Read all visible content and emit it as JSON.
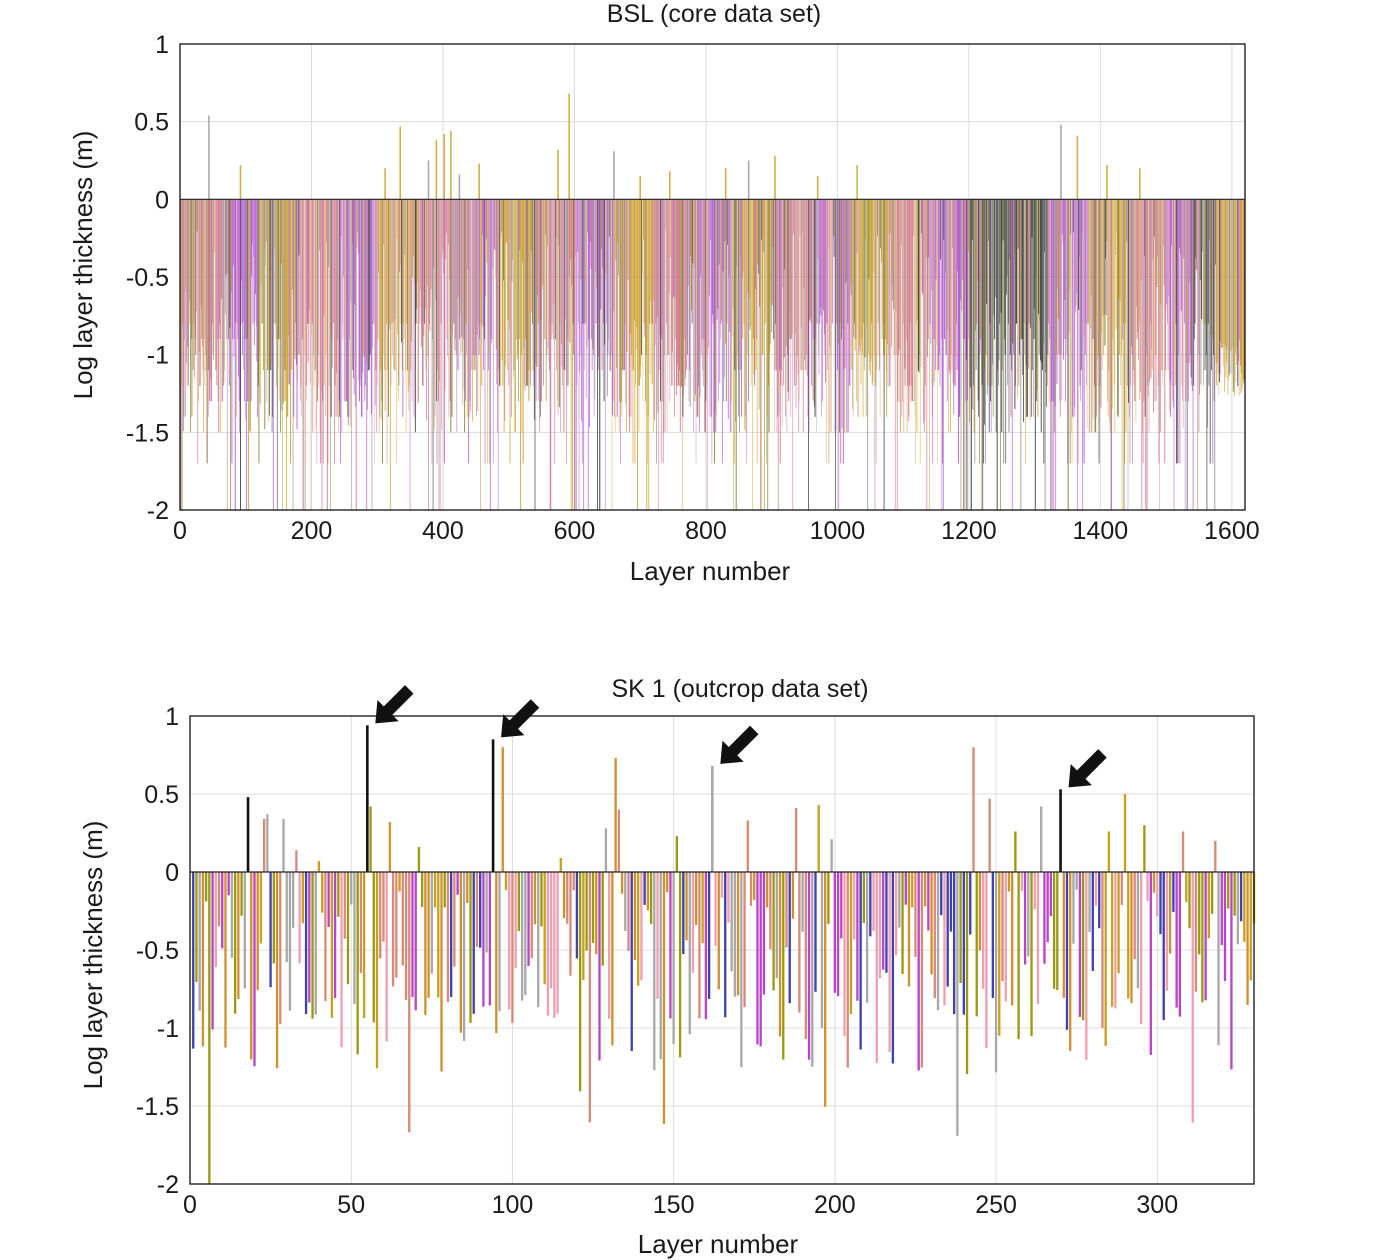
{
  "chart_data": [
    {
      "type": "bar",
      "title": "BSL (core data set)",
      "xlabel": "Layer number",
      "ylabel": "Log layer thickness (m)",
      "xlim": [
        0,
        1620
      ],
      "ylim": [
        -2,
        1
      ],
      "xticks": [
        0,
        200,
        400,
        600,
        800,
        1000,
        1200,
        1400,
        1600
      ],
      "xtick_labels": [
        "0",
        "200",
        "400",
        "600",
        "800",
        "1000",
        "1200",
        "1400",
        "1600"
      ],
      "yticks": [
        1,
        0.5,
        0,
        -0.5,
        -1,
        -1.5,
        -2
      ],
      "ytick_labels": [
        "1",
        "0.5",
        "0",
        "-0.5",
        "-1",
        "-1.5",
        "-2"
      ],
      "grid": true,
      "layer_count": 1620,
      "series_note": "dense bars, one per layer, coloured by facies",
      "palette": [
        "#c9a227",
        "#d07a8a",
        "#b45ad2",
        "#9c9c9c",
        "#404040",
        "#7a7a2a",
        "#e3b07a"
      ],
      "notable_positive_bars": [
        {
          "x": 44,
          "y": 0.54
        },
        {
          "x": 92,
          "y": 0.22
        },
        {
          "x": 312,
          "y": 0.2
        },
        {
          "x": 335,
          "y": 0.47
        },
        {
          "x": 378,
          "y": 0.25
        },
        {
          "x": 390,
          "y": 0.38
        },
        {
          "x": 402,
          "y": 0.42
        },
        {
          "x": 412,
          "y": 0.44
        },
        {
          "x": 425,
          "y": 0.16
        },
        {
          "x": 455,
          "y": 0.23
        },
        {
          "x": 575,
          "y": 0.32
        },
        {
          "x": 592,
          "y": 0.68
        },
        {
          "x": 660,
          "y": 0.31
        },
        {
          "x": 700,
          "y": 0.15
        },
        {
          "x": 745,
          "y": 0.18
        },
        {
          "x": 830,
          "y": 0.2
        },
        {
          "x": 865,
          "y": 0.25
        },
        {
          "x": 905,
          "y": 0.28
        },
        {
          "x": 970,
          "y": 0.15
        },
        {
          "x": 1030,
          "y": 0.22
        },
        {
          "x": 1340,
          "y": 0.48
        },
        {
          "x": 1365,
          "y": 0.41
        },
        {
          "x": 1410,
          "y": 0.22
        },
        {
          "x": 1460,
          "y": 0.2
        }
      ]
    },
    {
      "type": "bar",
      "title": "SK 1 (outcrop data set)",
      "xlabel": "Layer number",
      "ylabel": "Log layer thickness (m)",
      "xlim": [
        0,
        330
      ],
      "ylim": [
        -2,
        1
      ],
      "xticks": [
        0,
        50,
        100,
        150,
        200,
        250,
        300
      ],
      "xtick_labels": [
        "0",
        "50",
        "100",
        "150",
        "200",
        "250",
        "300"
      ],
      "yticks": [
        1,
        0.5,
        0,
        -0.5,
        -1,
        -1.5,
        -2
      ],
      "ytick_labels": [
        "1",
        "0.5",
        "0",
        "-0.5",
        "-1",
        "-1.5",
        "-2"
      ],
      "grid": true,
      "layer_count": 330,
      "series_note": "one bar per layer, coloured by facies",
      "palette": [
        "#c8a020",
        "#d88a78",
        "#b845c8",
        "#a8a8a8",
        "#4040b0",
        "#9a9a10",
        "#d09030",
        "#ee9fb0"
      ],
      "highlighted_bars": [
        {
          "x": 18,
          "y": 0.48,
          "color": "#111111"
        },
        {
          "x": 55,
          "y": 0.94,
          "color": "#111111"
        },
        {
          "x": 94,
          "y": 0.85,
          "color": "#111111"
        },
        {
          "x": 162,
          "y": 0.68,
          "color": "#a8a8a8"
        },
        {
          "x": 270,
          "y": 0.53,
          "color": "#111111"
        }
      ],
      "annotations": [
        {
          "type": "arrow",
          "target_x": 55,
          "target_y": 0.94
        },
        {
          "type": "arrow",
          "target_x": 94,
          "target_y": 0.85
        },
        {
          "type": "arrow",
          "target_x": 162,
          "target_y": 0.68
        },
        {
          "type": "arrow",
          "target_x": 270,
          "target_y": 0.53
        }
      ],
      "other_positive_bars": [
        {
          "x": 23,
          "y": 0.34
        },
        {
          "x": 24,
          "y": 0.37
        },
        {
          "x": 29,
          "y": 0.34
        },
        {
          "x": 33,
          "y": 0.14
        },
        {
          "x": 40,
          "y": 0.07
        },
        {
          "x": 56,
          "y": 0.42
        },
        {
          "x": 62,
          "y": 0.32
        },
        {
          "x": 71,
          "y": 0.16
        },
        {
          "x": 97,
          "y": 0.8
        },
        {
          "x": 115,
          "y": 0.09
        },
        {
          "x": 129,
          "y": 0.28
        },
        {
          "x": 132,
          "y": 0.73
        },
        {
          "x": 133,
          "y": 0.4
        },
        {
          "x": 151,
          "y": 0.23
        },
        {
          "x": 173,
          "y": 0.33
        },
        {
          "x": 188,
          "y": 0.41
        },
        {
          "x": 195,
          "y": 0.43
        },
        {
          "x": 199,
          "y": 0.21
        },
        {
          "x": 243,
          "y": 0.8
        },
        {
          "x": 248,
          "y": 0.47
        },
        {
          "x": 256,
          "y": 0.26
        },
        {
          "x": 264,
          "y": 0.42
        },
        {
          "x": 285,
          "y": 0.26
        },
        {
          "x": 290,
          "y": 0.5
        },
        {
          "x": 296,
          "y": 0.3
        },
        {
          "x": 308,
          "y": 0.26
        },
        {
          "x": 318,
          "y": 0.2
        }
      ]
    }
  ]
}
